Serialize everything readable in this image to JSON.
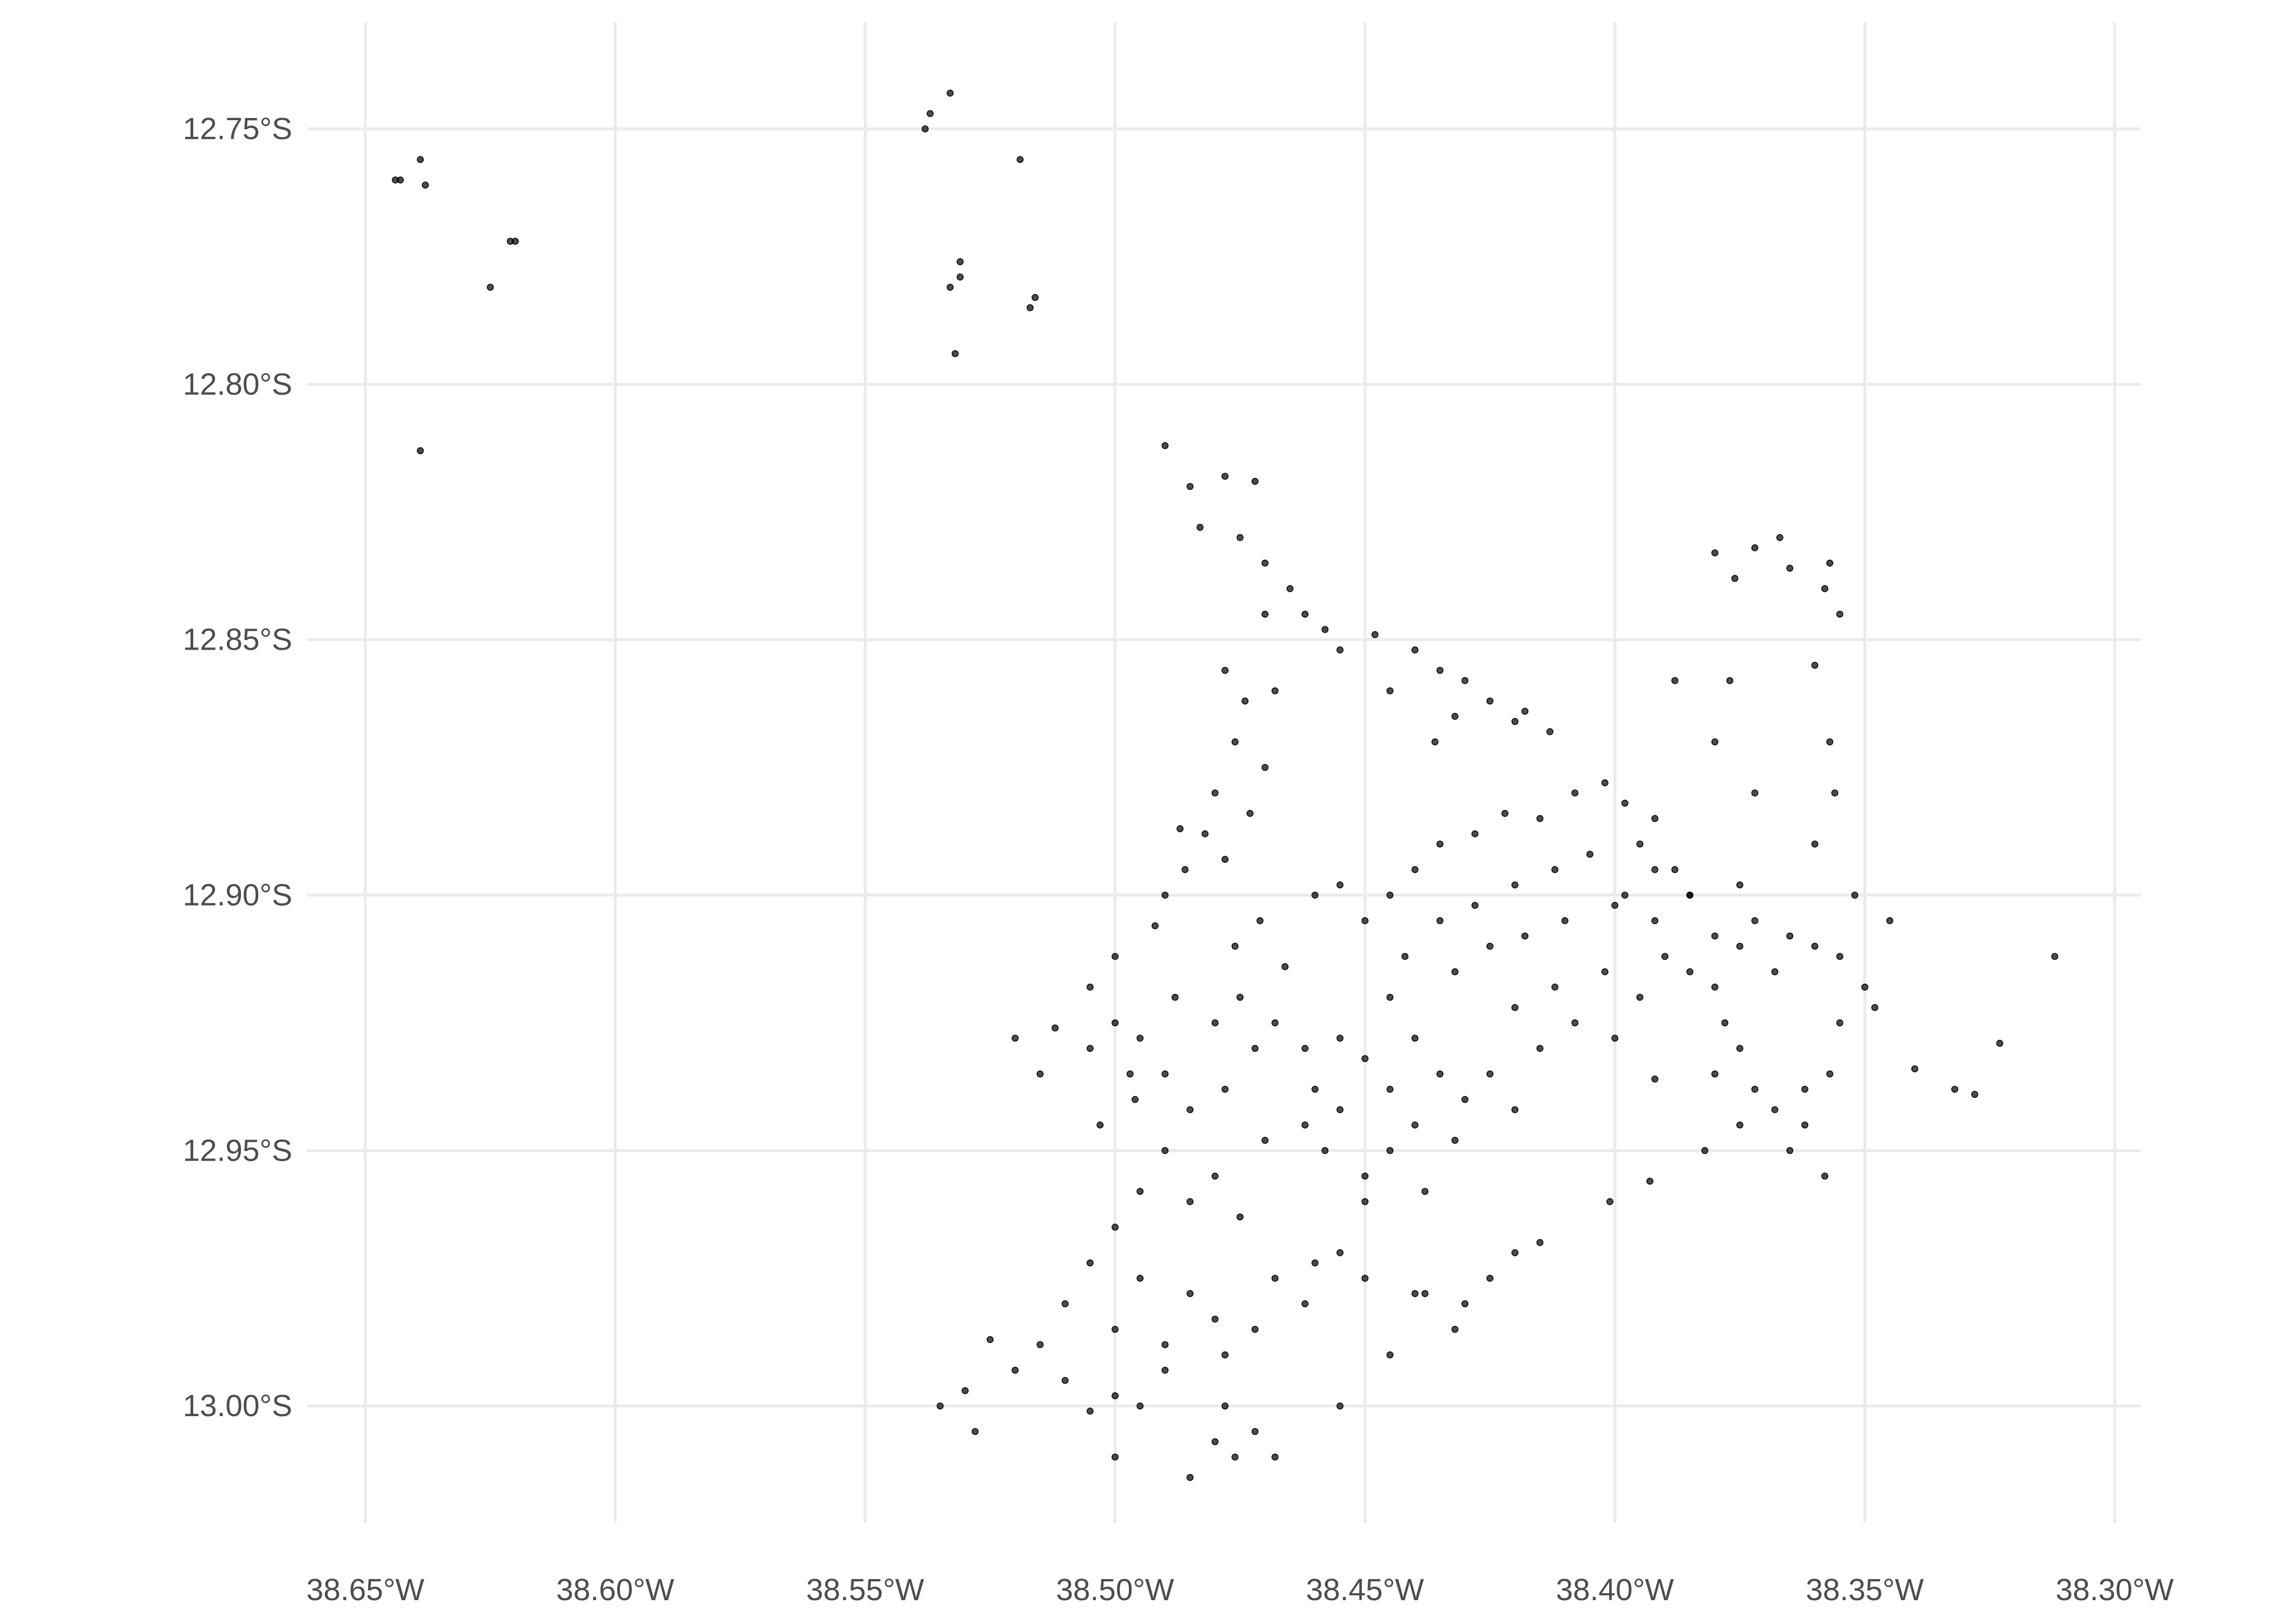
{
  "chart_data": {
    "type": "scatter",
    "title": "",
    "xlabel": "",
    "ylabel": "",
    "x_unit": "degrees longitude West",
    "y_unit": "degrees latitude South",
    "xlim": [
      38.66,
      38.29
    ],
    "ylim": [
      12.73,
      13.02
    ],
    "grid": true,
    "legend": "none",
    "point_color": "#000000",
    "point_alpha": 0.7,
    "x_ticks": [
      {
        "value": 38.65,
        "label": "38.65°W"
      },
      {
        "value": 38.6,
        "label": "38.60°W"
      },
      {
        "value": 38.55,
        "label": "38.55°W"
      },
      {
        "value": 38.5,
        "label": "38.50°W"
      },
      {
        "value": 38.45,
        "label": "38.45°W"
      },
      {
        "value": 38.4,
        "label": "38.40°W"
      },
      {
        "value": 38.35,
        "label": "38.35°W"
      },
      {
        "value": 38.3,
        "label": "38.30°W"
      }
    ],
    "y_ticks": [
      {
        "value": 12.75,
        "label": "12.75°S"
      },
      {
        "value": 12.8,
        "label": "12.80°S"
      },
      {
        "value": 12.85,
        "label": "12.85°S"
      },
      {
        "value": 12.9,
        "label": "12.90°S"
      },
      {
        "value": 12.95,
        "label": "12.95°S"
      },
      {
        "value": 13.0,
        "label": "13.00°S"
      }
    ],
    "points": [
      [
        38.643,
        12.76
      ],
      [
        38.644,
        12.76
      ],
      [
        38.639,
        12.756
      ],
      [
        38.638,
        12.761
      ],
      [
        38.621,
        12.772
      ],
      [
        38.62,
        12.772
      ],
      [
        38.625,
        12.781
      ],
      [
        38.639,
        12.813
      ],
      [
        38.538,
        12.75
      ],
      [
        38.537,
        12.747
      ],
      [
        38.533,
        12.743
      ],
      [
        38.519,
        12.756
      ],
      [
        38.531,
        12.776
      ],
      [
        38.531,
        12.779
      ],
      [
        38.533,
        12.781
      ],
      [
        38.516,
        12.783
      ],
      [
        38.517,
        12.785
      ],
      [
        38.532,
        12.794
      ],
      [
        38.312,
        12.912
      ],
      [
        38.323,
        12.929
      ],
      [
        38.332,
        12.938
      ],
      [
        38.328,
        12.939
      ],
      [
        38.34,
        12.934
      ],
      [
        38.401,
        12.96
      ],
      [
        38.392,
        12.936
      ],
      [
        38.393,
        12.956
      ],
      [
        38.485,
        12.82
      ],
      [
        38.478,
        12.818
      ],
      [
        38.472,
        12.819
      ],
      [
        38.483,
        12.828
      ],
      [
        38.475,
        12.83
      ],
      [
        38.47,
        12.835
      ],
      [
        38.465,
        12.84
      ],
      [
        38.462,
        12.845
      ],
      [
        38.47,
        12.845
      ],
      [
        38.458,
        12.848
      ],
      [
        38.455,
        12.852
      ],
      [
        38.448,
        12.849
      ],
      [
        38.44,
        12.852
      ],
      [
        38.435,
        12.856
      ],
      [
        38.43,
        12.858
      ],
      [
        38.425,
        12.862
      ],
      [
        38.42,
        12.866
      ],
      [
        38.413,
        12.868
      ],
      [
        38.445,
        12.86
      ],
      [
        38.478,
        12.856
      ],
      [
        38.474,
        12.862
      ],
      [
        38.468,
        12.86
      ],
      [
        38.476,
        12.87
      ],
      [
        38.47,
        12.875
      ],
      [
        38.48,
        12.88
      ],
      [
        38.473,
        12.884
      ],
      [
        38.482,
        12.888
      ],
      [
        38.486,
        12.895
      ],
      [
        38.49,
        12.9
      ],
      [
        38.478,
        12.893
      ],
      [
        38.471,
        12.905
      ],
      [
        38.476,
        12.91
      ],
      [
        38.466,
        12.914
      ],
      [
        38.46,
        12.9
      ],
      [
        38.455,
        12.898
      ],
      [
        38.487,
        12.887
      ],
      [
        38.49,
        12.812
      ],
      [
        38.436,
        12.87
      ],
      [
        38.432,
        12.865
      ],
      [
        38.418,
        12.864
      ],
      [
        38.512,
        12.926
      ],
      [
        38.505,
        12.93
      ],
      [
        38.5,
        12.925
      ],
      [
        38.495,
        12.928
      ],
      [
        38.49,
        12.935
      ],
      [
        38.496,
        12.94
      ],
      [
        38.485,
        12.942
      ],
      [
        38.478,
        12.938
      ],
      [
        38.472,
        12.93
      ],
      [
        38.48,
        12.925
      ],
      [
        38.488,
        12.92
      ],
      [
        38.475,
        12.92
      ],
      [
        38.468,
        12.925
      ],
      [
        38.462,
        12.93
      ],
      [
        38.455,
        12.928
      ],
      [
        38.515,
        12.935
      ],
      [
        38.52,
        12.928
      ],
      [
        38.503,
        12.945
      ],
      [
        38.49,
        12.95
      ],
      [
        38.48,
        12.955
      ],
      [
        38.47,
        12.948
      ],
      [
        38.462,
        12.945
      ],
      [
        38.458,
        12.95
      ],
      [
        38.475,
        12.963
      ],
      [
        38.485,
        12.96
      ],
      [
        38.495,
        12.958
      ],
      [
        38.5,
        12.965
      ],
      [
        38.505,
        12.972
      ],
      [
        38.495,
        12.975
      ],
      [
        38.485,
        12.978
      ],
      [
        38.48,
        12.983
      ],
      [
        38.49,
        12.988
      ],
      [
        38.5,
        12.985
      ],
      [
        38.51,
        12.98
      ],
      [
        38.515,
        12.988
      ],
      [
        38.52,
        12.993
      ],
      [
        38.525,
        12.987
      ],
      [
        38.53,
        12.997
      ],
      [
        38.51,
        12.995
      ],
      [
        38.505,
        13.001
      ],
      [
        38.5,
        12.998
      ],
      [
        38.495,
        13.0
      ],
      [
        38.49,
        12.993
      ],
      [
        38.478,
        12.99
      ],
      [
        38.472,
        12.985
      ],
      [
        38.468,
        12.975
      ],
      [
        38.46,
        12.972
      ],
      [
        38.455,
        12.97
      ],
      [
        38.45,
        12.975
      ],
      [
        38.462,
        12.98
      ],
      [
        38.48,
        13.007
      ],
      [
        38.476,
        13.01
      ],
      [
        38.472,
        13.005
      ],
      [
        38.478,
        13.0
      ],
      [
        38.468,
        13.01
      ],
      [
        38.485,
        13.014
      ],
      [
        38.5,
        13.01
      ],
      [
        38.528,
        13.005
      ],
      [
        38.535,
        13.0
      ],
      [
        38.455,
        13.0
      ],
      [
        38.445,
        12.99
      ],
      [
        38.44,
        12.978
      ],
      [
        38.45,
        12.96
      ],
      [
        38.497,
        12.935
      ],
      [
        38.505,
        12.918
      ],
      [
        38.5,
        12.912
      ],
      [
        38.492,
        12.906
      ],
      [
        38.45,
        12.905
      ],
      [
        38.445,
        12.9
      ],
      [
        38.44,
        12.895
      ],
      [
        38.435,
        12.89
      ],
      [
        38.428,
        12.888
      ],
      [
        38.422,
        12.884
      ],
      [
        38.415,
        12.885
      ],
      [
        38.408,
        12.88
      ],
      [
        38.402,
        12.878
      ],
      [
        38.398,
        12.882
      ],
      [
        38.392,
        12.885
      ],
      [
        38.395,
        12.89
      ],
      [
        38.405,
        12.892
      ],
      [
        38.412,
        12.895
      ],
      [
        38.42,
        12.898
      ],
      [
        38.428,
        12.902
      ],
      [
        38.435,
        12.905
      ],
      [
        38.442,
        12.912
      ],
      [
        38.432,
        12.915
      ],
      [
        38.425,
        12.91
      ],
      [
        38.418,
        12.908
      ],
      [
        38.41,
        12.905
      ],
      [
        38.4,
        12.902
      ],
      [
        38.392,
        12.905
      ],
      [
        38.385,
        12.9
      ],
      [
        38.38,
        12.908
      ],
      [
        38.39,
        12.912
      ],
      [
        38.402,
        12.915
      ],
      [
        38.412,
        12.918
      ],
      [
        38.42,
        12.922
      ],
      [
        38.408,
        12.925
      ],
      [
        38.415,
        12.93
      ],
      [
        38.445,
        12.92
      ],
      [
        38.44,
        12.928
      ],
      [
        38.435,
        12.935
      ],
      [
        38.445,
        12.938
      ],
      [
        38.45,
        12.932
      ],
      [
        38.44,
        12.945
      ],
      [
        38.432,
        12.948
      ],
      [
        38.445,
        12.95
      ],
      [
        38.45,
        12.955
      ],
      [
        38.438,
        12.958
      ],
      [
        38.43,
        12.94
      ],
      [
        38.425,
        12.935
      ],
      [
        38.42,
        12.942
      ],
      [
        38.4,
        12.928
      ],
      [
        38.395,
        12.92
      ],
      [
        38.385,
        12.915
      ],
      [
        38.438,
        12.978
      ],
      [
        38.43,
        12.98
      ],
      [
        38.425,
        12.975
      ],
      [
        38.42,
        12.97
      ],
      [
        38.415,
        12.968
      ],
      [
        38.432,
        12.985
      ],
      [
        38.455,
        12.942
      ],
      [
        38.46,
        12.938
      ],
      [
        38.398,
        12.9
      ],
      [
        38.388,
        12.895
      ],
      [
        38.375,
        12.898
      ],
      [
        38.38,
        12.833
      ],
      [
        38.376,
        12.838
      ],
      [
        38.372,
        12.832
      ],
      [
        38.367,
        12.83
      ],
      [
        38.365,
        12.836
      ],
      [
        38.358,
        12.84
      ],
      [
        38.355,
        12.845
      ],
      [
        38.357,
        12.835
      ],
      [
        38.36,
        12.855
      ],
      [
        38.357,
        12.87
      ],
      [
        38.356,
        12.88
      ],
      [
        38.36,
        12.89
      ],
      [
        38.372,
        12.905
      ],
      [
        38.365,
        12.908
      ],
      [
        38.36,
        12.91
      ],
      [
        38.355,
        12.912
      ],
      [
        38.35,
        12.918
      ],
      [
        38.348,
        12.922
      ],
      [
        38.345,
        12.905
      ],
      [
        38.352,
        12.9
      ],
      [
        38.368,
        12.915
      ],
      [
        38.375,
        12.91
      ],
      [
        38.38,
        12.918
      ],
      [
        38.378,
        12.925
      ],
      [
        38.375,
        12.93
      ],
      [
        38.38,
        12.935
      ],
      [
        38.372,
        12.938
      ],
      [
        38.368,
        12.942
      ],
      [
        38.362,
        12.938
      ],
      [
        38.357,
        12.935
      ],
      [
        38.362,
        12.945
      ],
      [
        38.365,
        12.95
      ],
      [
        38.375,
        12.945
      ],
      [
        38.382,
        12.95
      ],
      [
        38.358,
        12.955
      ],
      [
        38.385,
        12.9
      ],
      [
        38.392,
        12.895
      ],
      [
        38.372,
        12.88
      ],
      [
        38.38,
        12.87
      ],
      [
        38.388,
        12.858
      ],
      [
        38.377,
        12.858
      ],
      [
        38.355,
        12.925
      ]
    ]
  }
}
